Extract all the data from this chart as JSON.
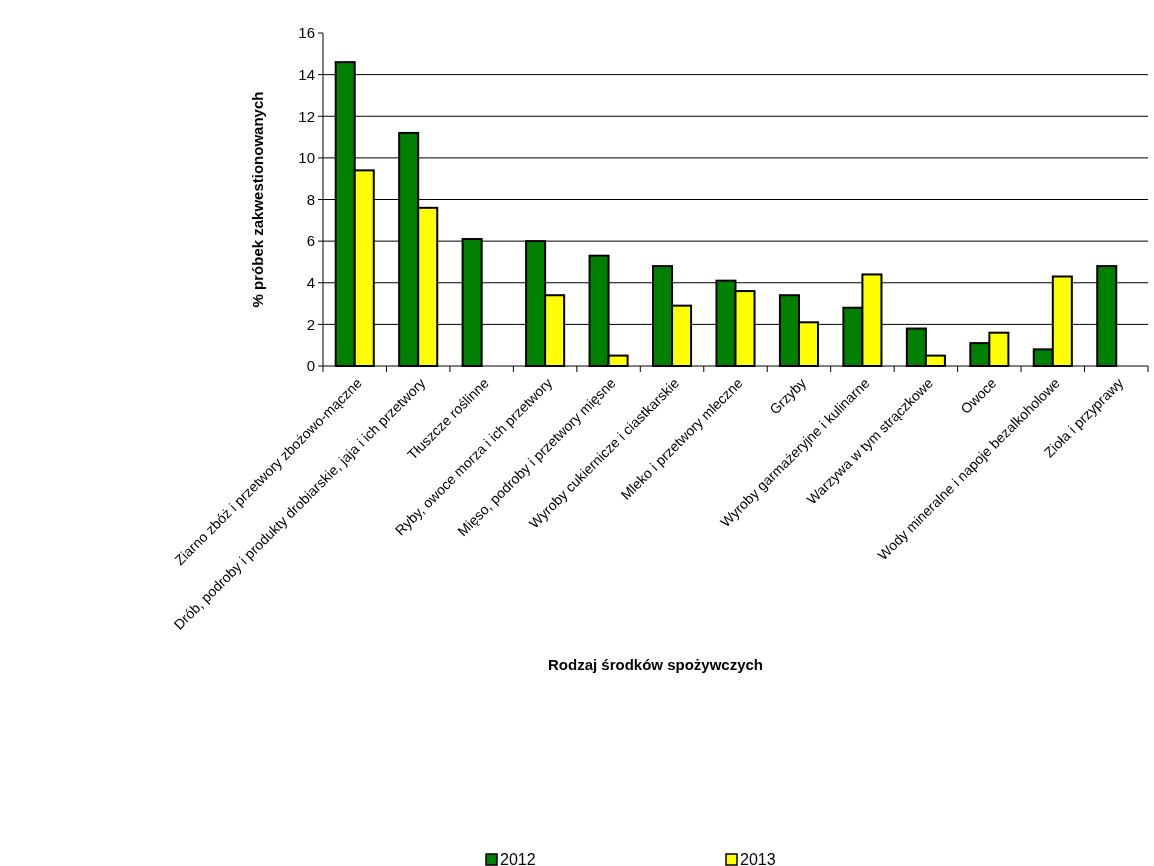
{
  "chart_data": {
    "type": "bar",
    "xlabel": "Rodzaj środków spożywczych",
    "ylabel": "% próbek zakwestionowanych",
    "categories": [
      "Ziarno zbóż i przetwory zbożowo-mączne",
      "Drób, podroby i produkty drobiarskie, jaja i ich przetwory",
      "Tłuszcze roślinne",
      "Ryby, owoce morza i ich przetwory",
      "Mięso, podroby i przetwory mięsne",
      "Wyroby cukiernicze i ciastkarskie",
      "Mleko i przetwory mleczne",
      "Grzyby",
      "Wyroby garmażeryjne i kulinarne",
      "Warzywa w tym strączkowe",
      "Owoce",
      "Wody mineralne i napoje bezalkoholowe",
      "Zioła i przyprawy"
    ],
    "series": [
      {
        "name": "2012",
        "color": "#008000",
        "values": [
          14.6,
          11.2,
          6.1,
          6.0,
          5.3,
          4.8,
          4.1,
          3.4,
          2.8,
          1.8,
          1.1,
          0.8,
          4.8
        ]
      },
      {
        "name": "2013",
        "color": "#ffff00",
        "values": [
          9.4,
          7.6,
          null,
          3.4,
          0.5,
          2.9,
          3.6,
          2.1,
          4.4,
          0.5,
          1.6,
          4.3,
          null
        ]
      }
    ],
    "ylim": [
      0,
      16
    ],
    "yticks": [
      0,
      2,
      4,
      6,
      8,
      10,
      12,
      14,
      16
    ],
    "grid": "y",
    "legend": "bottom"
  }
}
